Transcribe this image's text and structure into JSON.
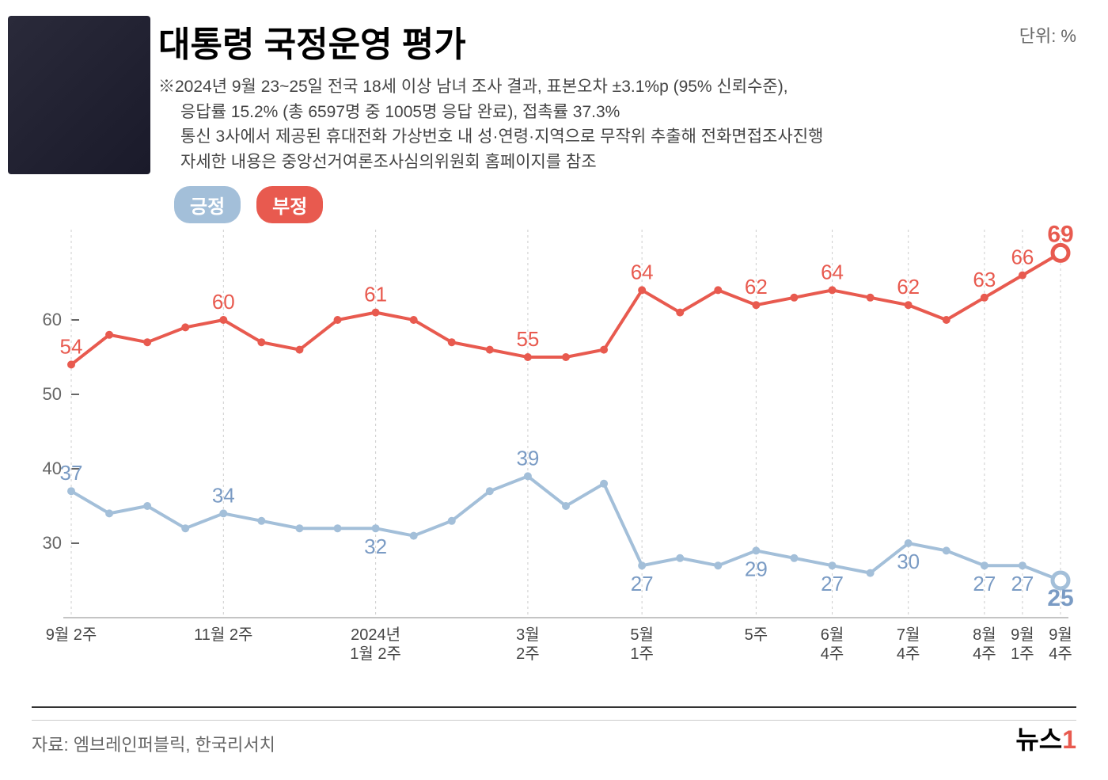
{
  "title": "대통령 국정운영 평가",
  "unit": "단위: %",
  "subtitle_line1": "※2024년 9월 23~25일 전국 18세 이상 남녀 조사 결과, 표본오차 ±3.1%p (95% 신뢰수준),",
  "subtitle_line2": "응답률 15.2% (총 6597명 중 1005명 응답 완료), 접촉률 37.3%",
  "subtitle_line3": "통신 3사에서 제공된 휴대전화 가상번호 내 성·연령·지역으로 무작위 추출해 전화면접조사진행",
  "subtitle_line4": "자세한 내용은 중앙선거여론조사심의위원회 홈페이지를 참조",
  "legend": {
    "positive": "긍정",
    "negative": "부정"
  },
  "chart": {
    "type": "line",
    "ylim": [
      20,
      70
    ],
    "ytick_labels": [
      30,
      40,
      50,
      60
    ],
    "y_axis_color": "#666666",
    "grid_color": "#e0e0e0",
    "background_color": "#ffffff",
    "xtick_labels": [
      "9월 2주",
      "",
      "",
      "",
      "11월 2주",
      "",
      "",
      "",
      "2024년\n1월 2주",
      "",
      "",
      "",
      "3월\n2주",
      "",
      "",
      "5월\n1주",
      "",
      "",
      "5주",
      "",
      "6월\n4주",
      "",
      "7월\n4주",
      "",
      "8월\n4주",
      "9월\n1주",
      "9월\n4주"
    ],
    "vertical_grid_indices": [
      0,
      4,
      8,
      12,
      15,
      18,
      20,
      22,
      24,
      25,
      26
    ],
    "series": {
      "positive": {
        "color": "#a3bfd9",
        "stroke_width": 4,
        "marker_radius": 5,
        "values": [
          37,
          34,
          35,
          32,
          34,
          33,
          32,
          32,
          32,
          31,
          33,
          37,
          39,
          35,
          38,
          27,
          28,
          27,
          29,
          28,
          27,
          26,
          30,
          29,
          27,
          27,
          25
        ],
        "labels": {
          "0": "37",
          "4": "34",
          "8": "32",
          "12": "39",
          "15": "27",
          "18": "29",
          "20": "27",
          "22": "30",
          "24": "27",
          "25": "27",
          "26": "25"
        },
        "label_color": "#7a9bc4",
        "last_marker_open": true
      },
      "negative": {
        "color": "#e85a4f",
        "stroke_width": 4,
        "marker_radius": 5,
        "values": [
          54,
          58,
          57,
          59,
          60,
          57,
          56,
          60,
          61,
          60,
          57,
          56,
          55,
          55,
          56,
          64,
          61,
          64,
          62,
          63,
          64,
          63,
          62,
          60,
          63,
          66,
          69
        ],
        "labels": {
          "0": "54",
          "4": "60",
          "8": "61",
          "12": "55",
          "15": "64",
          "18": "62",
          "20": "64",
          "22": "62",
          "24": "63",
          "25": "66",
          "26": "69"
        },
        "label_color": "#e85a4f",
        "last_marker_open": true
      }
    }
  },
  "source": "자료: 엠브레인퍼블릭, 한국리서치",
  "logo_text": "뉴스",
  "logo_accent": "1"
}
